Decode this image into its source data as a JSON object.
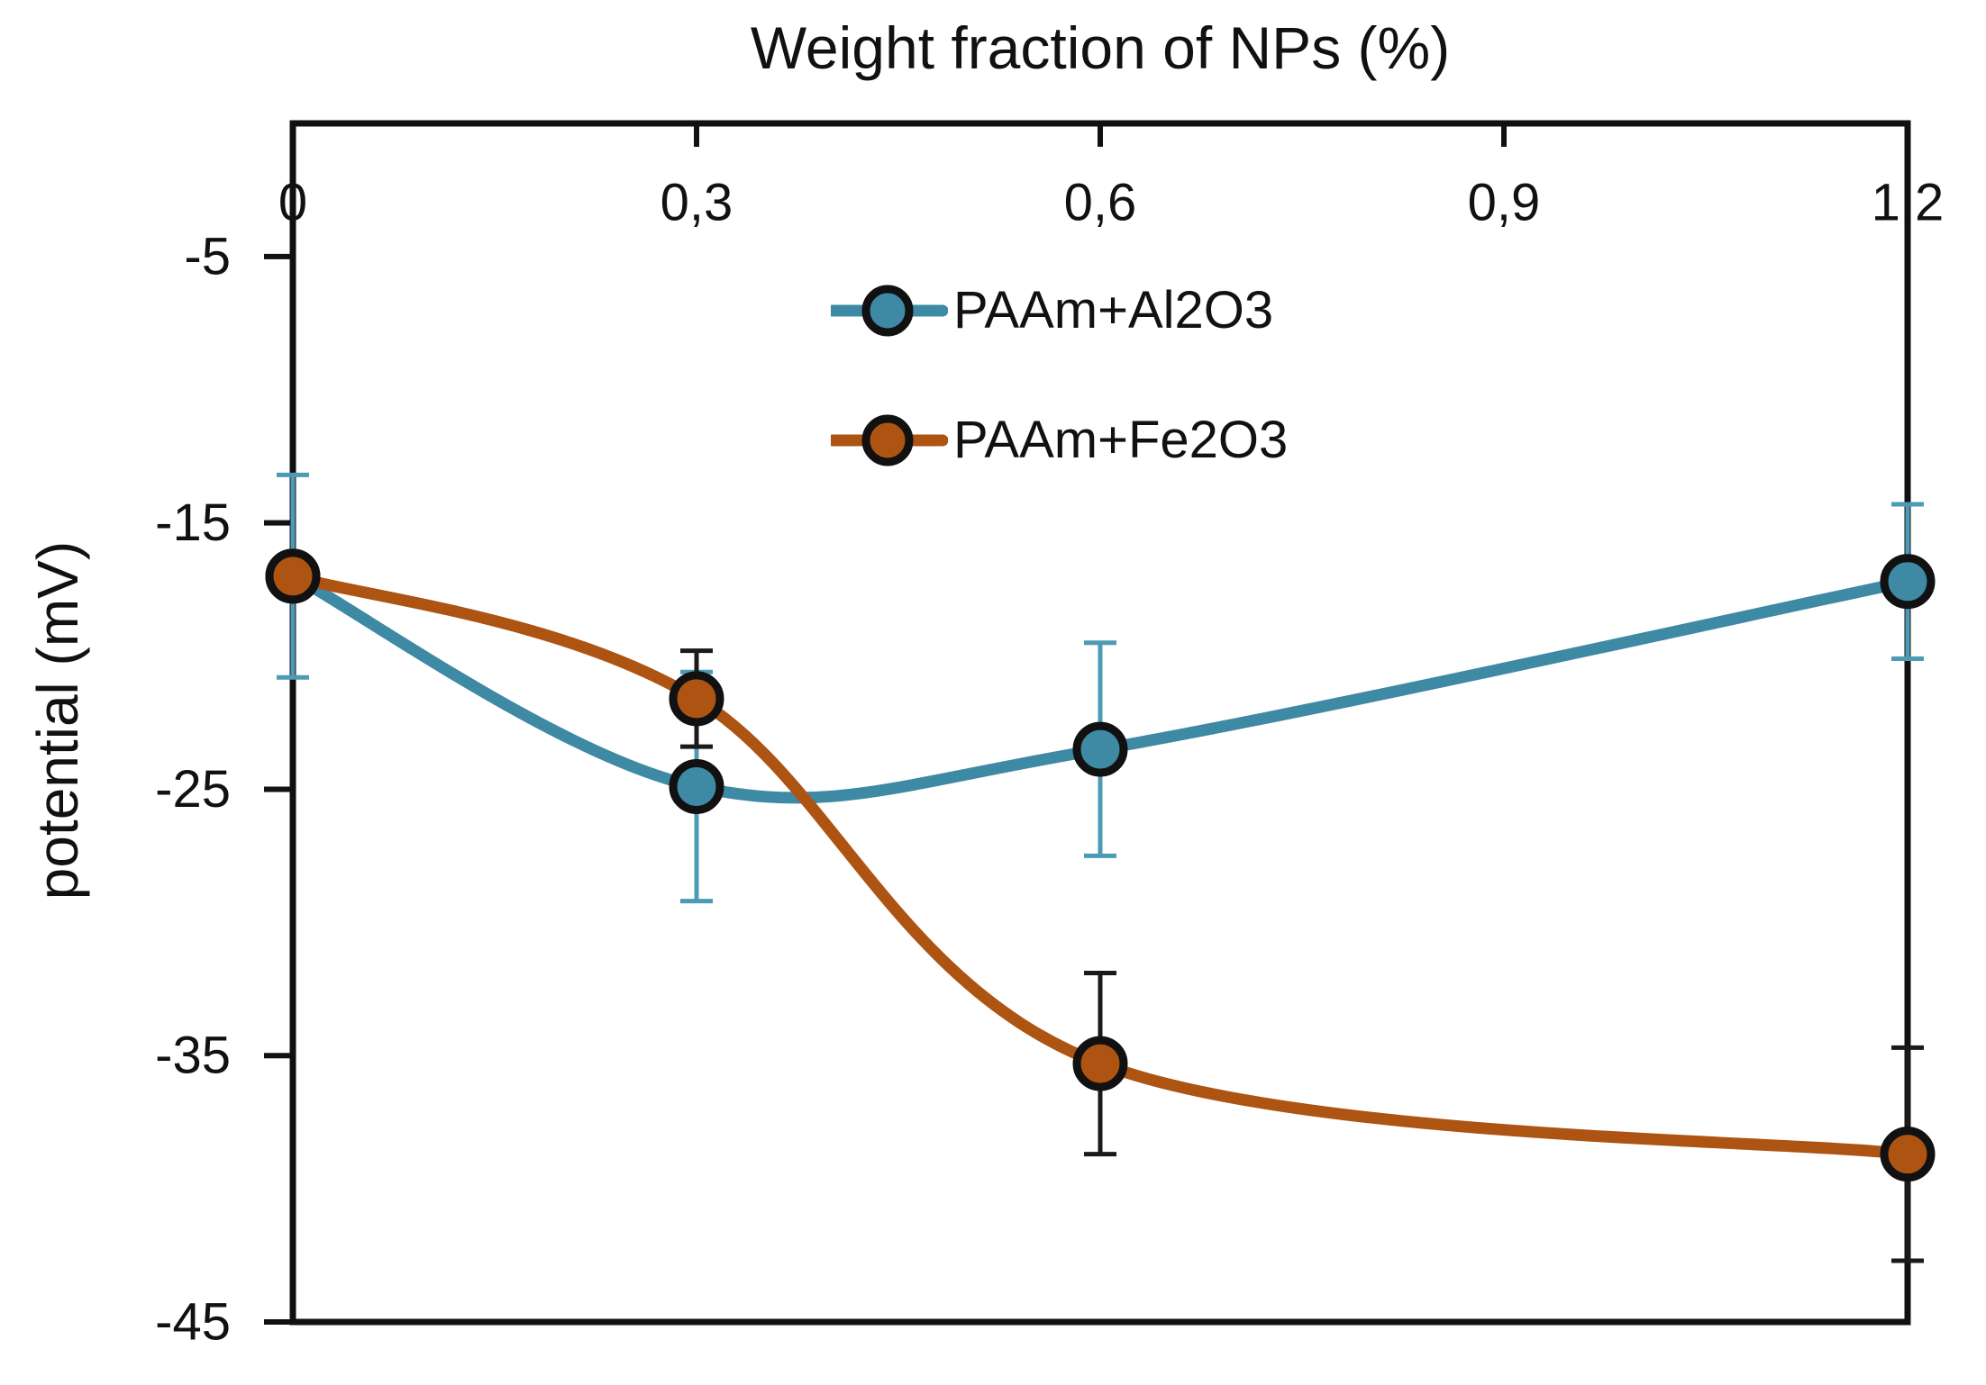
{
  "chart_data": {
    "type": "line",
    "title": "Weight fraction of NPs (%)",
    "xlabel": "Weight fraction of NPs (%)",
    "ylabel": "potential (mV)",
    "x_axis_position": "top",
    "xlim": [
      0,
      1.2
    ],
    "ylim": [
      -45,
      0
    ],
    "x_ticks": [
      0,
      0.3,
      0.6,
      0.9,
      1.2
    ],
    "x_tick_labels": [
      "0",
      "0,3",
      "0,6",
      "0,9",
      "1,2"
    ],
    "y_ticks": [
      -5,
      -15,
      -25,
      -35,
      -45
    ],
    "y_tick_labels": [
      "-5",
      "-15",
      "-25",
      "-35",
      "-45"
    ],
    "grid": false,
    "legend_position": "upper-center-inside",
    "axis_color": "#111111",
    "marker_outline_color": "#111111",
    "series": [
      {
        "name": "PAAm+Al2O3",
        "color": "#3E89A4",
        "error_color": "#4C9AB6",
        "x": [
          0,
          0.3,
          0.6,
          1.2
        ],
        "y": [
          -17.0,
          -24.9,
          -23.5,
          -17.2
        ],
        "yerr": [
          3.8,
          4.3,
          4.0,
          2.9
        ]
      },
      {
        "name": "PAAm+Fe2O3",
        "color": "#AD5413",
        "error_color": "#1A1A1A",
        "x": [
          0,
          0.3,
          0.6,
          1.2
        ],
        "y": [
          -17.0,
          -21.6,
          -35.3,
          -38.7
        ],
        "yerr": [
          0,
          1.8,
          3.4,
          4.0
        ]
      }
    ]
  }
}
